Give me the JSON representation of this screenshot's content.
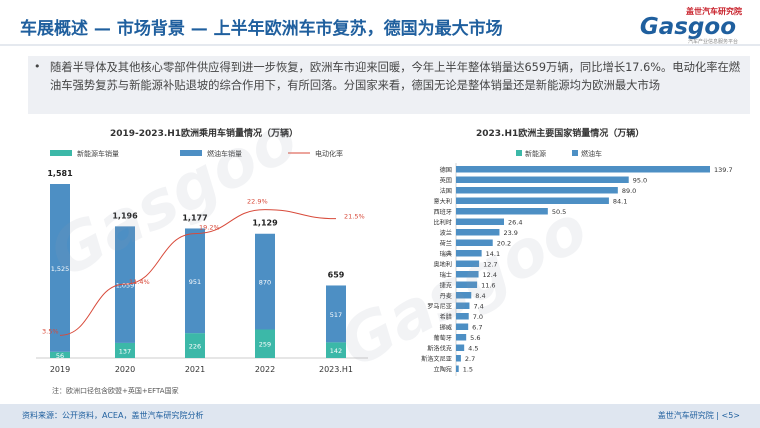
{
  "header": {
    "title": "车展概述 — 市场背景 — 上半年欧洲车市复苏，德国为最大市场",
    "logo_top": "盖世汽车研究院",
    "logo_main": "Gasgoo",
    "logo_sub": "汽车产业信息服务平台"
  },
  "summary": {
    "bullet": "•",
    "text": "随着半导体及其他核心零部件供应得到进一步恢复，欧洲车市迎来回暖，今年上半年整体销量达659万辆，同比增长17.6%。电动化率在燃油车强势复苏与新能源补贴退坡的综合作用下，有所回落。分国家来看，德国无论是整体销量还是新能源均为欧洲最大市场"
  },
  "watermark": "Gasgoo",
  "colors": {
    "nev": "#3cb8a8",
    "ice": "#4d8fc4",
    "rate": "#d84a3a",
    "title": "#1f5f9e"
  },
  "chart_data": [
    {
      "type": "bar",
      "title": "2019-2023.H1欧洲乘用车销量情况（万辆）",
      "categories": [
        "2019",
        "2020",
        "2021",
        "2022",
        "2023.H1"
      ],
      "stacked": true,
      "series": [
        {
          "name": "新能源车销量",
          "values": [
            56,
            137,
            226,
            259,
            142
          ]
        },
        {
          "name": "燃油车销量",
          "values": [
            1525,
            1059,
            951,
            870,
            517
          ]
        },
        {
          "name": "电动化率",
          "type": "line",
          "values": [
            3.5,
            11.4,
            19.2,
            22.9,
            21.5
          ],
          "labels": [
            "3.5%",
            "11.4%",
            "19.2%",
            "22.9%",
            "21.5%"
          ]
        }
      ],
      "totals": [
        1581,
        1196,
        1177,
        1129,
        659
      ],
      "total_labels": [
        "1,581",
        "1,196",
        "1,177",
        "1,129",
        "659"
      ],
      "ice_labels": [
        "1,525",
        "1,059",
        "951",
        "870",
        "517"
      ],
      "legend": "top",
      "note": "注：欧洲口径包含欧盟+英国+EFTA国家"
    },
    {
      "type": "bar",
      "orientation": "horizontal",
      "title": "2023.H1欧洲主要国家销量情况（万辆）",
      "legend_labels": [
        "新能源",
        "燃油车"
      ],
      "categories": [
        "德国",
        "英国",
        "法国",
        "意大利",
        "西班牙",
        "比利时",
        "波兰",
        "荷兰",
        "瑞典",
        "奥地利",
        "瑞士",
        "捷克",
        "丹麦",
        "罗马尼亚",
        "希腊",
        "挪威",
        "葡萄牙",
        "斯洛伐克",
        "斯洛文尼亚",
        "立陶宛"
      ],
      "values": [
        139.7,
        95.0,
        89.0,
        84.1,
        50.5,
        26.4,
        23.9,
        20.2,
        14.1,
        12.7,
        12.4,
        11.6,
        8.4,
        7.4,
        7.0,
        6.7,
        5.6,
        4.5,
        2.7,
        1.5
      ],
      "value_labels": [
        "139.7",
        "95.0",
        "89.0",
        "84.1",
        "50.5",
        "26.4",
        "23.9",
        "20.2",
        "14.1",
        "12.7",
        "12.4",
        "11.6",
        "8.4",
        "7.4",
        "7.0",
        "6.7",
        "5.6",
        "4.5",
        "2.7",
        "1.5"
      ]
    }
  ],
  "footer": {
    "source": "资料来源：公开资料，ACEA，盖世汽车研究院分析",
    "right": "盖世汽车研究院 | <5>"
  }
}
